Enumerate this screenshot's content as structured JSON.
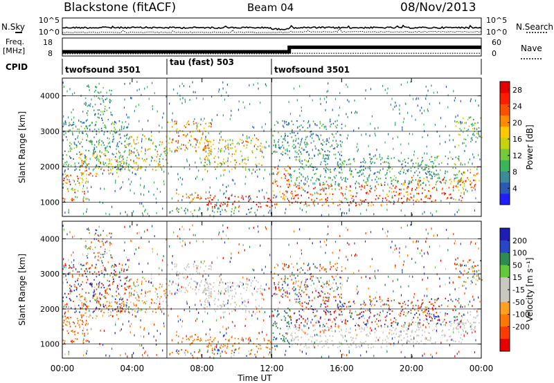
{
  "header": {
    "title": "Blackstone (fitACF)",
    "beam": "Beam 04",
    "date": "08/Nov/2013"
  },
  "side_labels": {
    "nsky": "N.Sky",
    "freq_line1": "Freq.",
    "freq_line2": "[MHz]",
    "cpid": "CPID",
    "nsearch": "N.Search",
    "nave": "Nave"
  },
  "colors": {
    "power_scale": [
      "#1e1eff",
      "#2a5ab4",
      "#3c8c96",
      "#3cb45a",
      "#78c83c",
      "#c8d20a",
      "#ffc800",
      "#ff8c00",
      "#ff5000",
      "#ff1e00",
      "#e60000"
    ],
    "velocity_scale": [
      "#1e1eb4",
      "#2846c8",
      "#2d8c50",
      "#64c83c",
      "#c8c8c0",
      "#c8c8c0",
      "#ffa01e",
      "#ff7800",
      "#ff3c00",
      "#e60000"
    ]
  },
  "chart_data": [
    {
      "type": "line",
      "name": "noise-panel",
      "left_axis": {
        "label": "N.Sky",
        "ticks": [
          "10^5",
          "10^0"
        ],
        "scale": "log"
      },
      "right_axis": {
        "label": "N.Search",
        "ticks": [
          "10^5",
          "10^0"
        ],
        "scale": "log"
      },
      "x": [
        "00:00",
        "06:00",
        "12:00",
        "13:00",
        "24:00"
      ],
      "series": [
        {
          "name": "N.Sky",
          "values": [
            100,
            100,
            30,
            100,
            100
          ]
        },
        {
          "name": "N.Search",
          "values": [
            2,
            2,
            2,
            3,
            3
          ]
        }
      ]
    },
    {
      "type": "line",
      "name": "freq-nave-panel",
      "left_axis": {
        "label": "Freq. [MHz]",
        "ticks": [
          18,
          8
        ]
      },
      "right_axis": {
        "label": "Nave",
        "ticks": [
          60,
          0
        ]
      },
      "x": [
        "00:00",
        "13:00",
        "13:00",
        "24:00"
      ],
      "series": [
        {
          "name": "Freq.",
          "values": [
            10.2,
            10.2,
            14.9,
            14.9
          ]
        },
        {
          "name": "Nave",
          "values": [
            5,
            5,
            8,
            8
          ]
        }
      ]
    },
    {
      "type": "table",
      "name": "cpid-bar",
      "label": "CPID",
      "segments": [
        {
          "start": "00:00",
          "end": "06:00",
          "label": "twofsound 3501"
        },
        {
          "start": "06:00",
          "end": "12:00",
          "label": "tau (fast) 503"
        },
        {
          "start": "12:00",
          "end": "24:00",
          "label": "twofsound 3501"
        }
      ]
    },
    {
      "type": "heatmap",
      "name": "power",
      "ylabel": "Slant Range [km]",
      "yticks": [
        1000,
        2000,
        3000,
        4000
      ],
      "ylim": [
        600,
        4500
      ],
      "colorbar_label": "Power [dB]",
      "colorbar_ticks": [
        4,
        8,
        12,
        16,
        20,
        24,
        28
      ],
      "colorbar_range": [
        0,
        30
      ]
    },
    {
      "type": "heatmap",
      "name": "velocity",
      "ylabel": "Slant Range [km]",
      "yticks": [
        1000,
        2000,
        3000,
        4000
      ],
      "ylim": [
        600,
        4500
      ],
      "colorbar_label": "Velocity [m s⁻¹]",
      "colorbar_ticks": [
        200,
        100,
        50,
        15,
        -15,
        -50,
        -100,
        -200
      ]
    }
  ],
  "x_axis": {
    "label": "Time UT",
    "ticks": [
      "00:00",
      "04:00",
      "08:00",
      "12:00",
      "16:00",
      "20:00",
      "00:00"
    ],
    "range_hours": [
      0,
      24
    ]
  },
  "scatter_bands": [
    {
      "t0": 0.0,
      "t1": 1.5,
      "r0": 1000,
      "r1": 1800,
      "pc": [
        10,
        30
      ],
      "vc": [
        -120,
        -20
      ]
    },
    {
      "t0": 1.0,
      "t1": 3.5,
      "r0": 1700,
      "r1": 2400,
      "pc": [
        12,
        26
      ],
      "vc": [
        -80,
        20
      ]
    },
    {
      "t0": 0.0,
      "t1": 3.8,
      "r0": 1900,
      "r1": 3300,
      "pc": [
        3,
        14
      ],
      "vc": [
        -200,
        200
      ]
    },
    {
      "t0": 1.3,
      "t1": 2.8,
      "r0": 3300,
      "r1": 4300,
      "pc": [
        4,
        12
      ],
      "vc": [
        -150,
        150
      ]
    },
    {
      "t0": 3.5,
      "t1": 6.0,
      "r0": 1900,
      "r1": 2900,
      "pc": [
        8,
        22
      ],
      "vc": [
        -60,
        30
      ]
    },
    {
      "t0": 6.0,
      "t1": 8.5,
      "r0": 2400,
      "r1": 3300,
      "pc": [
        14,
        28
      ],
      "vc": [
        -15,
        15
      ]
    },
    {
      "t0": 8.0,
      "t1": 11.5,
      "r0": 1900,
      "r1": 2800,
      "pc": [
        10,
        24
      ],
      "vc": [
        -15,
        15
      ]
    },
    {
      "t0": 6.5,
      "t1": 8.0,
      "r0": 1000,
      "r1": 1300,
      "pc": [
        16,
        26
      ],
      "vc": [
        -80,
        -50
      ]
    },
    {
      "t0": 8.0,
      "t1": 12.0,
      "r0": 850,
      "r1": 1200,
      "pc": [
        22,
        30
      ],
      "vc": [
        -60,
        -30
      ]
    },
    {
      "t0": 6.0,
      "t1": 11.0,
      "r0": 650,
      "r1": 850,
      "pc": [
        4,
        14
      ],
      "vc": [
        -150,
        150
      ]
    },
    {
      "t0": 12.0,
      "t1": 13.0,
      "r0": 900,
      "r1": 2100,
      "pc": [
        16,
        28
      ],
      "vc": [
        40,
        90
      ]
    },
    {
      "t0": 12.8,
      "t1": 19.5,
      "r0": 900,
      "r1": 1500,
      "pc": [
        18,
        30
      ],
      "vc": [
        -15,
        15
      ]
    },
    {
      "t0": 19.5,
      "t1": 23.0,
      "r0": 1000,
      "r1": 1700,
      "pc": [
        16,
        28
      ],
      "vc": [
        -15,
        15
      ]
    },
    {
      "t0": 22.5,
      "t1": 24.0,
      "r0": 1400,
      "r1": 2000,
      "pc": [
        14,
        26
      ],
      "vc": [
        -15,
        15
      ]
    },
    {
      "t0": 13.0,
      "t1": 23.0,
      "r0": 1500,
      "r1": 2300,
      "pc": [
        4,
        14
      ],
      "vc": [
        -200,
        200
      ]
    },
    {
      "t0": 12.0,
      "t1": 16.0,
      "r0": 2300,
      "r1": 3300,
      "pc": [
        3,
        12
      ],
      "vc": [
        -150,
        150
      ]
    },
    {
      "t0": 22.5,
      "t1": 24.0,
      "r0": 2600,
      "r1": 3400,
      "pc": [
        6,
        16
      ],
      "vc": [
        -100,
        100
      ]
    },
    {
      "t0": 0.0,
      "t1": 24.0,
      "r0": 600,
      "r1": 4400,
      "pc": [
        3,
        10
      ],
      "vc": [
        -200,
        200
      ],
      "sparse": true
    }
  ]
}
